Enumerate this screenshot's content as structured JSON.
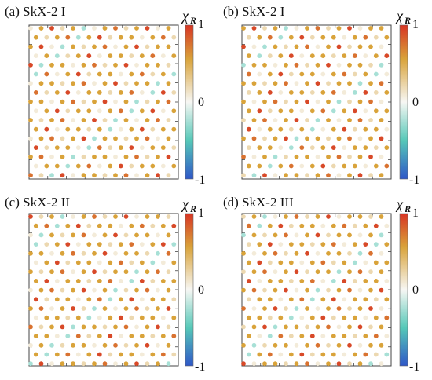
{
  "colors": {
    "neg": "#2f57c7",
    "negmid": "#56c8b8",
    "zero": "#f7f7f4",
    "posmid": "#d9a33a",
    "pos": "#d83524"
  },
  "chart_data": [
    {
      "type": "heatmap",
      "title": "(a) SkX-2 I",
      "colorbar": {
        "symbol": "χ",
        "subscript": "R",
        "ticks": [
          "1",
          "0",
          "-1"
        ],
        "range": [
          -1,
          1
        ]
      },
      "lattice": "triangular",
      "pattern": "A"
    },
    {
      "type": "heatmap",
      "title": "(b) SkX-2 I",
      "colorbar": {
        "symbol": "χ",
        "subscript": "R",
        "ticks": [
          "1",
          "0",
          "-1"
        ],
        "range": [
          -1,
          1
        ]
      },
      "lattice": "triangular",
      "pattern": "B"
    },
    {
      "type": "heatmap",
      "title": "(c) SkX-2 II",
      "colorbar": {
        "symbol": "χ",
        "subscript": "R",
        "ticks": [
          "1",
          "0",
          "-1"
        ],
        "range": [
          -1,
          1
        ]
      },
      "lattice": "triangular",
      "pattern": "C"
    },
    {
      "type": "heatmap",
      "title": "(d) SkX-2 III",
      "colorbar": {
        "symbol": "χ",
        "subscript": "R",
        "ticks": [
          "1",
          "0",
          "-1"
        ],
        "range": [
          -1,
          1
        ]
      },
      "lattice": "triangular",
      "pattern": "D"
    }
  ]
}
